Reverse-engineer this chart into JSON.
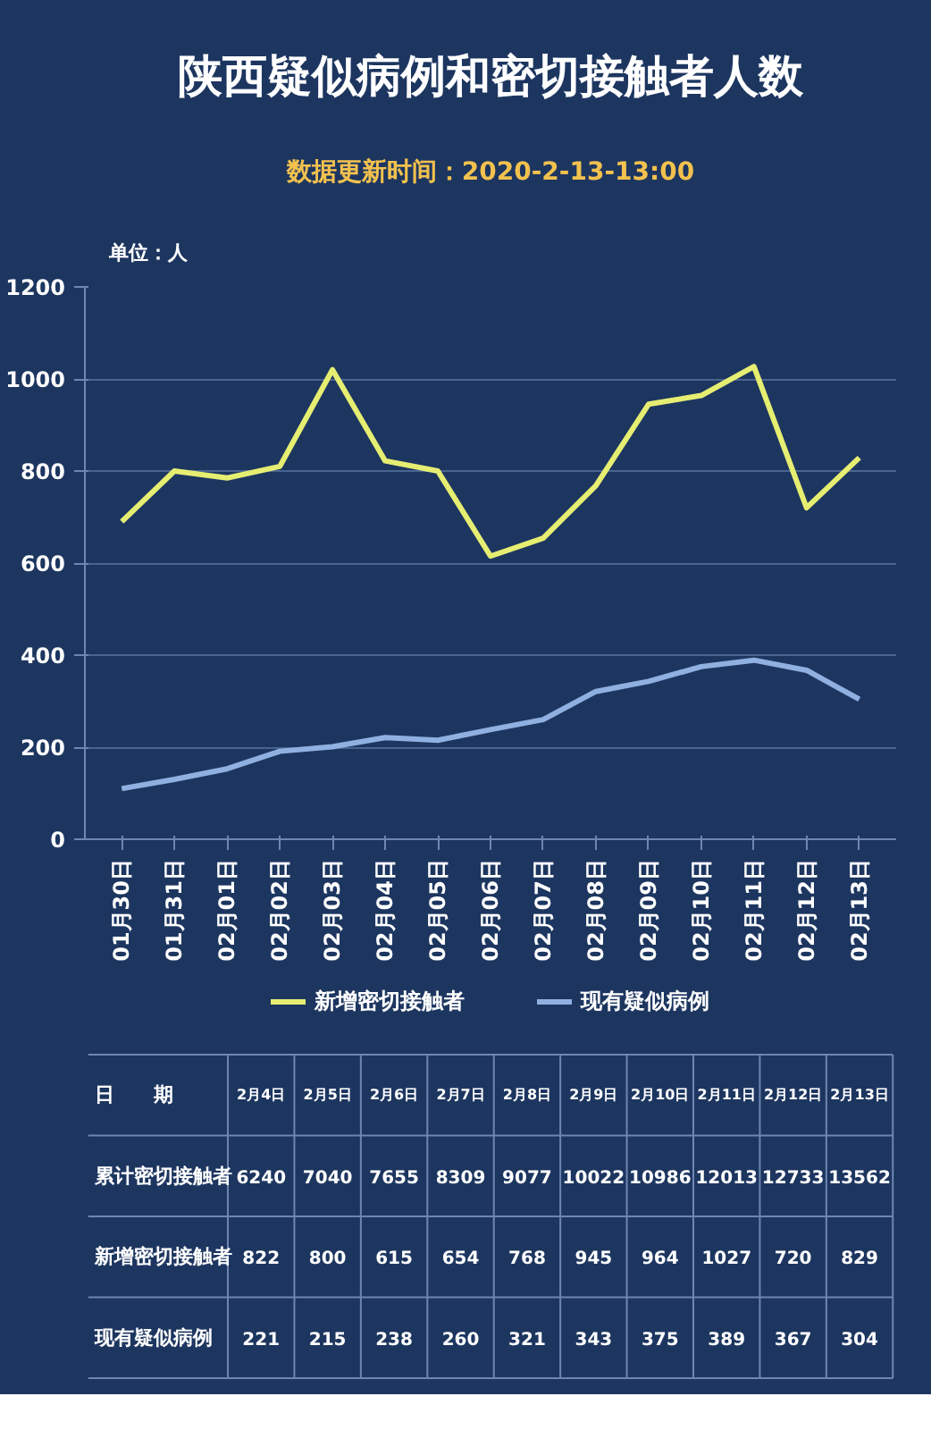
{
  "chart_data": [
    {
      "type": "line",
      "title": "陕西疑似病例和密切接触者人数",
      "subtitle": "数据更新时间：2020-2-13-13:00",
      "ylabel": "单位：人",
      "categories": [
        "01月30日",
        "01月31日",
        "02月01日",
        "02月02日",
        "02月03日",
        "02月04日",
        "02月05日",
        "02月06日",
        "02月07日",
        "02月08日",
        "02月09日",
        "02月10日",
        "02月11日",
        "02月12日",
        "02月13日"
      ],
      "series": [
        {
          "name": "新增密切接触者",
          "color": "#e6ee72",
          "values": [
            690,
            800,
            785,
            810,
            1020,
            822,
            800,
            615,
            654,
            768,
            945,
            964,
            1027,
            720,
            829
          ]
        },
        {
          "name": "现有疑似病例",
          "color": "#8fb0e0",
          "values": [
            110,
            130,
            153,
            191,
            201,
            221,
            215,
            238,
            260,
            321,
            343,
            375,
            389,
            367,
            304
          ]
        }
      ],
      "ylim": [
        0,
        1200
      ],
      "yticks": [
        0,
        200,
        400,
        600,
        800,
        1000,
        1200
      ],
      "grid": "y",
      "legend": "bottom"
    },
    {
      "type": "other",
      "xlabel": "日　　期",
      "data_labels": true,
      "categories": [
        "2月4日",
        "2月5日",
        "2月6日",
        "2月7日",
        "2月8日",
        "2月9日",
        "2月10日",
        "2月11日",
        "2月12日",
        "2月13日"
      ],
      "series": [
        {
          "name": "累计密切接触者",
          "values": [
            6240,
            7040,
            7655,
            8309,
            9077,
            10022,
            10986,
            12013,
            12733,
            13562
          ]
        },
        {
          "name": "新增密切接触者",
          "values": [
            822,
            800,
            615,
            654,
            768,
            945,
            964,
            1027,
            720,
            829
          ]
        },
        {
          "name": "现有疑似病例",
          "values": [
            221,
            215,
            238,
            260,
            321,
            343,
            375,
            389,
            367,
            304
          ]
        }
      ]
    }
  ]
}
